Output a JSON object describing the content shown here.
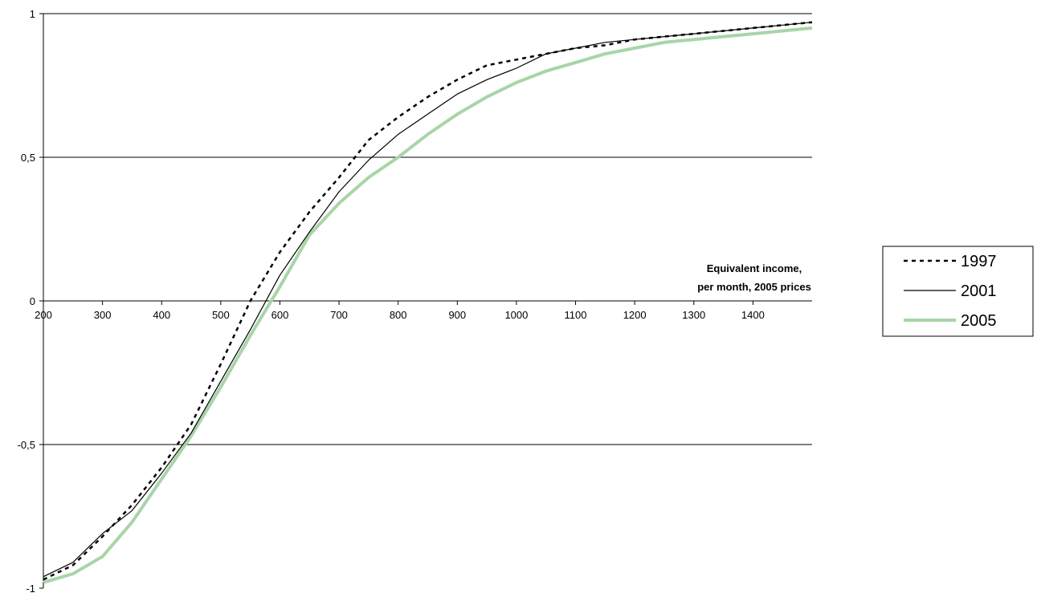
{
  "chart_data": {
    "type": "line",
    "title": "",
    "xlabel_lines": [
      "Equivalent income,",
      "per month, 2005 prices"
    ],
    "ylabel": "",
    "xlim": [
      200,
      1500
    ],
    "ylim": [
      -1,
      1
    ],
    "x_ticks": [
      200,
      300,
      400,
      500,
      600,
      700,
      800,
      900,
      1000,
      1100,
      1200,
      1300,
      1400
    ],
    "x_tick_labels": [
      "200",
      "300",
      "400",
      "500",
      "600",
      "700",
      "800",
      "900",
      "1000",
      "1100",
      "1200",
      "1300",
      "1400"
    ],
    "y_ticks": [
      -1,
      -0.5,
      0,
      0.5,
      1
    ],
    "y_tick_labels": [
      "-1",
      "-0,5",
      "0",
      "0,5",
      "1"
    ],
    "grid": "horizontal",
    "legend": "right",
    "x": [
      200,
      250,
      300,
      350,
      400,
      450,
      500,
      550,
      600,
      650,
      700,
      750,
      800,
      850,
      900,
      950,
      1000,
      1050,
      1100,
      1150,
      1200,
      1250,
      1300,
      1350,
      1400,
      1450,
      1500
    ],
    "series": [
      {
        "name": "1997",
        "style": "dashed",
        "color": "#000000",
        "values": [
          -0.97,
          -0.92,
          -0.82,
          -0.71,
          -0.58,
          -0.43,
          -0.22,
          0.0,
          0.17,
          0.31,
          0.43,
          0.56,
          0.64,
          0.71,
          0.77,
          0.82,
          0.84,
          0.86,
          0.88,
          0.89,
          0.91,
          0.92,
          0.93,
          0.94,
          0.95,
          0.96,
          0.97
        ]
      },
      {
        "name": "2001",
        "style": "solid",
        "color": "#000000",
        "values": [
          -0.96,
          -0.91,
          -0.81,
          -0.73,
          -0.6,
          -0.46,
          -0.28,
          -0.1,
          0.09,
          0.24,
          0.38,
          0.49,
          0.58,
          0.65,
          0.72,
          0.77,
          0.81,
          0.86,
          0.88,
          0.9,
          0.91,
          0.92,
          0.93,
          0.94,
          0.95,
          0.96,
          0.97
        ]
      },
      {
        "name": "2005",
        "style": "solid-thick",
        "color": "#a8d5a8",
        "values": [
          -0.98,
          -0.95,
          -0.89,
          -0.77,
          -0.62,
          -0.47,
          -0.3,
          -0.12,
          0.05,
          0.23,
          0.34,
          0.43,
          0.5,
          0.58,
          0.65,
          0.71,
          0.76,
          0.8,
          0.83,
          0.86,
          0.88,
          0.9,
          0.91,
          0.92,
          0.93,
          0.94,
          0.95
        ]
      }
    ]
  }
}
